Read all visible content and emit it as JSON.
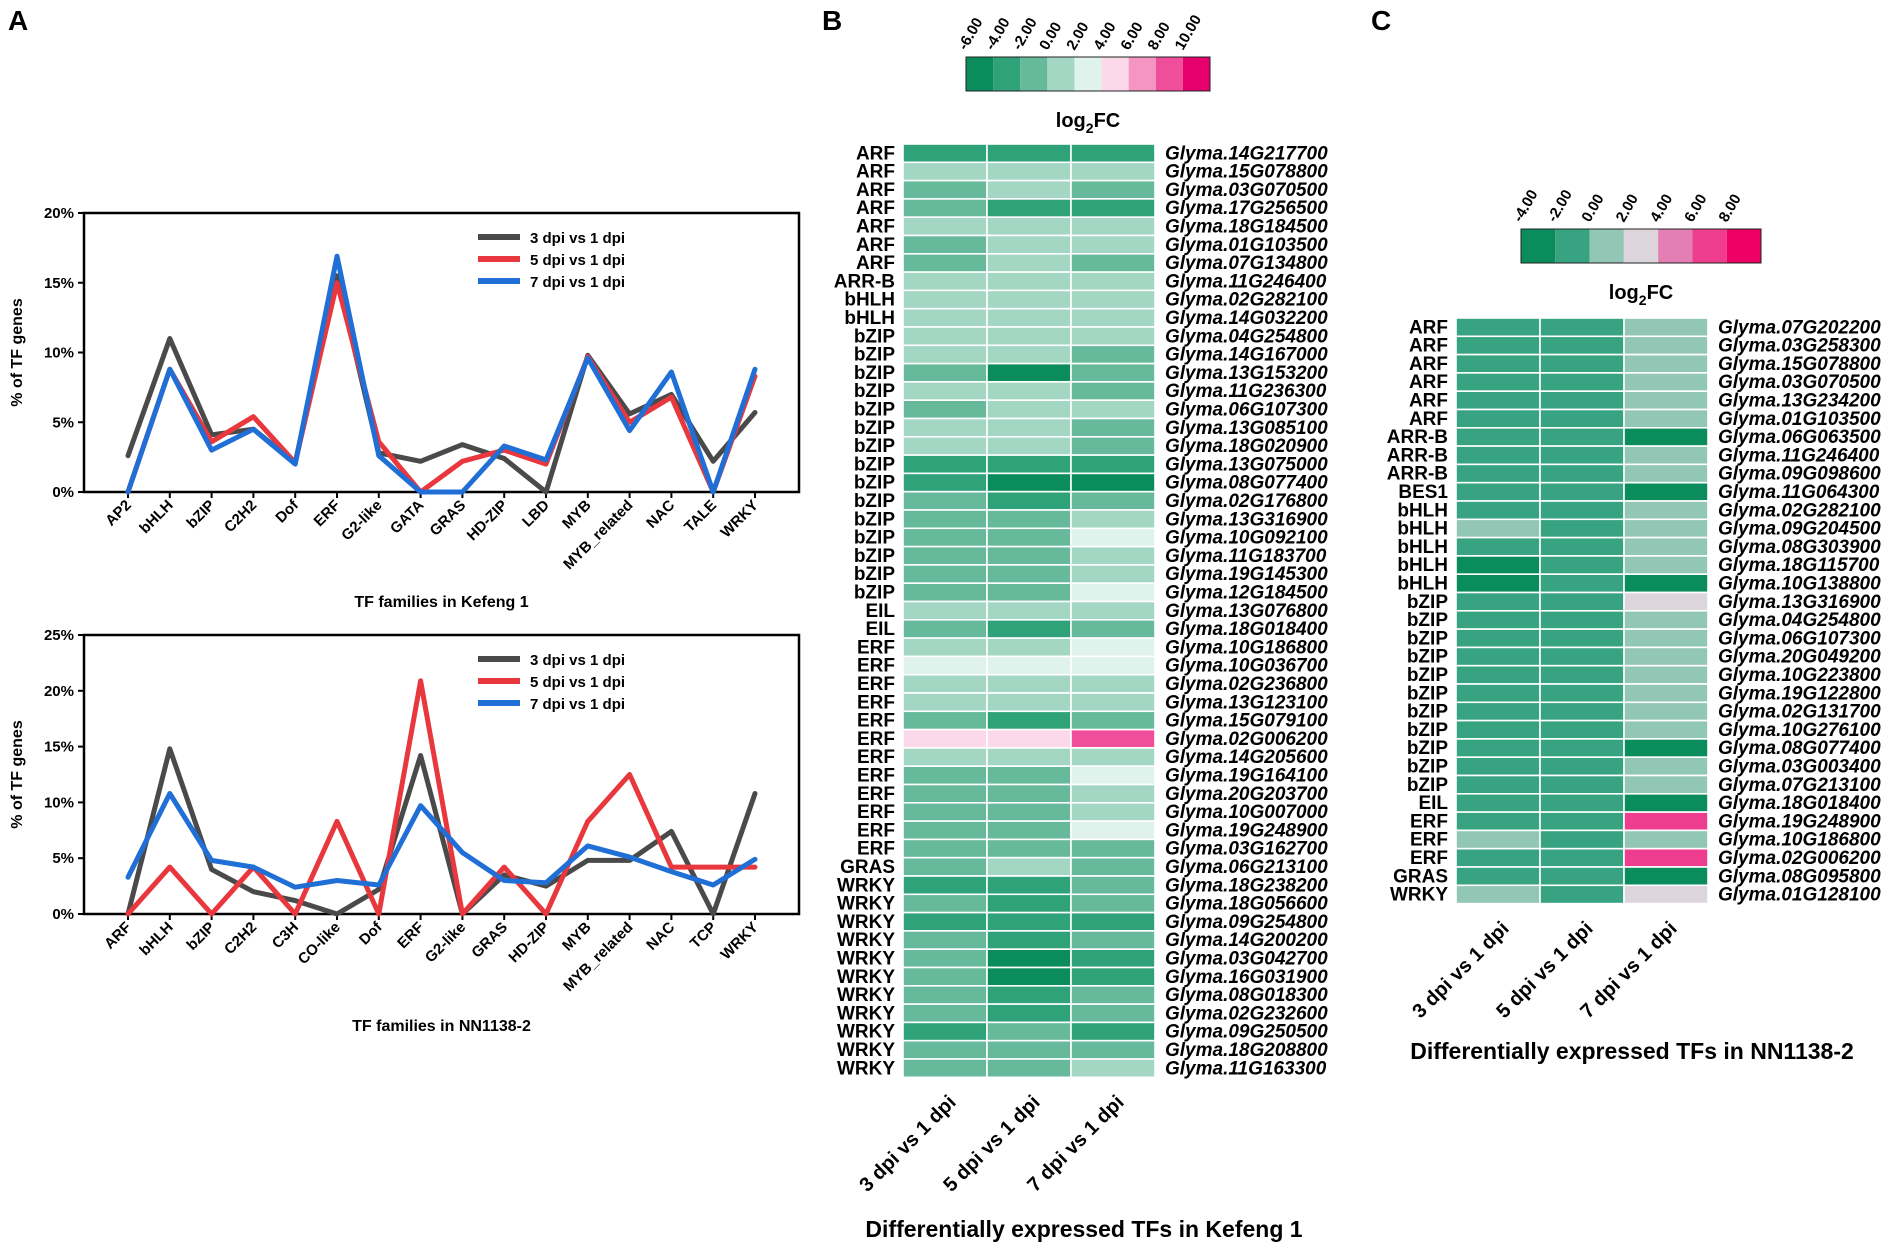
{
  "panels": {
    "A": "A",
    "B": "B",
    "C": "C"
  },
  "colors": {
    "series": [
      "#4a4a4a",
      "#e8383d",
      "#1f6fd6"
    ],
    "scale_B": [
      "#0a8c5c",
      "#2fa27a",
      "#66b99b",
      "#a3d7c4",
      "#e0f2ec",
      "#fbd9ea",
      "#f595c2",
      "#ef4f9a",
      "#e6006e"
    ],
    "scale_C": [
      "#0a8c5c",
      "#37a380",
      "#93c7b5",
      "#dcd6dc",
      "#e37fb3",
      "#ee3d8f",
      "#ee0065"
    ]
  },
  "chart_data": [
    {
      "type": "line",
      "panel": "A",
      "title": "",
      "xlabel": "TF families in Kefeng 1",
      "ylabel": "% of TF genes",
      "ylim": [
        0,
        20
      ],
      "yticks": [
        "0%",
        "5%",
        "10%",
        "15%",
        "20%"
      ],
      "legend_position": "top-right",
      "categories": [
        "AP2",
        "bHLH",
        "bZIP",
        "C2H2",
        "Dof",
        "ERF",
        "G2-like",
        "GATA",
        "GRAS",
        "HD-ZIP",
        "LBD",
        "MYB",
        "MYB_related",
        "NAC",
        "TALE",
        "WRKY"
      ],
      "series": [
        {
          "name": "3 dpi vs 1 dpi",
          "values": [
            2.6,
            11.0,
            4.1,
            4.5,
            2.1,
            15.5,
            2.8,
            2.2,
            3.4,
            2.4,
            0.0,
            9.8,
            5.6,
            7.0,
            2.2,
            5.7
          ]
        },
        {
          "name": "5 dpi vs 1 dpi",
          "values": [
            0.0,
            8.8,
            3.6,
            5.4,
            2.1,
            15.0,
            3.6,
            0.0,
            2.2,
            3.0,
            2.0,
            9.7,
            5.0,
            6.8,
            0.0,
            8.3
          ]
        },
        {
          "name": "7 dpi vs 1 dpi",
          "values": [
            0.0,
            8.8,
            3.0,
            4.5,
            2.0,
            16.9,
            2.6,
            0.0,
            0.0,
            3.3,
            2.3,
            9.6,
            4.4,
            8.6,
            0.0,
            8.8
          ]
        }
      ]
    },
    {
      "type": "line",
      "panel": "A",
      "title": "",
      "xlabel": "TF families in NN1138-2",
      "ylabel": "% of TF genes",
      "ylim": [
        0,
        25
      ],
      "yticks": [
        "0%",
        "5%",
        "10%",
        "15%",
        "20%",
        "25%"
      ],
      "legend_position": "top-right",
      "categories": [
        "ARF",
        "bHLH",
        "bZIP",
        "C2H2",
        "C3H",
        "CO-like",
        "Dof",
        "ERF",
        "G2-like",
        "GRAS",
        "HD-ZIP",
        "MYB",
        "MYB_related",
        "NAC",
        "TCP",
        "WRKY"
      ],
      "series": [
        {
          "name": "3 dpi vs 1 dpi",
          "values": [
            0.0,
            14.8,
            4.0,
            2.0,
            1.2,
            0.0,
            2.2,
            14.2,
            0.0,
            3.5,
            2.5,
            4.8,
            4.8,
            7.4,
            0.0,
            10.8
          ]
        },
        {
          "name": "5 dpi vs 1 dpi",
          "values": [
            0.0,
            4.2,
            0.0,
            4.2,
            0.0,
            8.3,
            0.0,
            20.9,
            0.0,
            4.2,
            0.0,
            8.3,
            12.5,
            4.2,
            4.2,
            4.2
          ]
        },
        {
          "name": "7 dpi vs 1 dpi",
          "values": [
            3.3,
            10.8,
            4.8,
            4.2,
            2.4,
            3.0,
            2.6,
            9.7,
            5.5,
            3.0,
            2.8,
            6.1,
            5.1,
            3.8,
            2.6,
            4.9
          ]
        }
      ]
    },
    {
      "type": "heatmap",
      "panel": "B",
      "title": "Differentially expressed TFs in Kefeng 1",
      "scale_title": "log2FC",
      "scale_ticks": [
        "-6.00",
        "-4.00",
        "-2.00",
        "0.00",
        "2.00",
        "4.00",
        "6.00",
        "8.00",
        "10.00"
      ],
      "columns": [
        "3 dpi vs 1 dpi",
        "5 dpi vs 1 dpi",
        "7 dpi vs 1 dpi"
      ],
      "rows": [
        {
          "family": "ARF",
          "gene": "Glyma.14G217700",
          "values": [
            -3,
            -3,
            -3
          ]
        },
        {
          "family": "ARF",
          "gene": "Glyma.15G078800",
          "values": [
            0,
            0,
            0
          ]
        },
        {
          "family": "ARF",
          "gene": "Glyma.03G070500",
          "values": [
            -1,
            0,
            -1
          ]
        },
        {
          "family": "ARF",
          "gene": "Glyma.17G256500",
          "values": [
            -1,
            -3,
            -3
          ]
        },
        {
          "family": "ARF",
          "gene": "Glyma.18G184500",
          "values": [
            0,
            0,
            0
          ]
        },
        {
          "family": "ARF",
          "gene": "Glyma.01G103500",
          "values": [
            -1,
            0,
            0
          ]
        },
        {
          "family": "ARF",
          "gene": "Glyma.07G134800",
          "values": [
            -1,
            0,
            -1
          ]
        },
        {
          "family": "ARR-B",
          "gene": "Glyma.11G246400",
          "values": [
            0,
            0,
            0
          ]
        },
        {
          "family": "bHLH",
          "gene": "Glyma.02G282100",
          "values": [
            0,
            0,
            0
          ]
        },
        {
          "family": "bHLH",
          "gene": "Glyma.14G032200",
          "values": [
            0,
            0,
            0
          ]
        },
        {
          "family": "bZIP",
          "gene": "Glyma.04G254800",
          "values": [
            0,
            0,
            0
          ]
        },
        {
          "family": "bZIP",
          "gene": "Glyma.14G167000",
          "values": [
            0,
            0,
            -1
          ]
        },
        {
          "family": "bZIP",
          "gene": "Glyma.13G153200",
          "values": [
            -1,
            -5,
            -1
          ]
        },
        {
          "family": "bZIP",
          "gene": "Glyma.11G236300",
          "values": [
            0,
            0,
            -1
          ]
        },
        {
          "family": "bZIP",
          "gene": "Glyma.06G107300",
          "values": [
            -1,
            0,
            0
          ]
        },
        {
          "family": "bZIP",
          "gene": "Glyma.13G085100",
          "values": [
            0,
            0,
            -1
          ]
        },
        {
          "family": "bZIP",
          "gene": "Glyma.18G020900",
          "values": [
            0,
            0,
            -1
          ]
        },
        {
          "family": "bZIP",
          "gene": "Glyma.13G075000",
          "values": [
            -3,
            -3,
            -3
          ]
        },
        {
          "family": "bZIP",
          "gene": "Glyma.08G077400",
          "values": [
            -3,
            -5,
            -5
          ]
        },
        {
          "family": "bZIP",
          "gene": "Glyma.02G176800",
          "values": [
            -1,
            -3,
            -1
          ]
        },
        {
          "family": "bZIP",
          "gene": "Glyma.13G316900",
          "values": [
            -1,
            -1,
            0
          ]
        },
        {
          "family": "bZIP",
          "gene": "Glyma.10G092100",
          "values": [
            -1,
            -1,
            3
          ]
        },
        {
          "family": "bZIP",
          "gene": "Glyma.11G183700",
          "values": [
            -1,
            -1,
            0
          ]
        },
        {
          "family": "bZIP",
          "gene": "Glyma.19G145300",
          "values": [
            -1,
            -1,
            0
          ]
        },
        {
          "family": "bZIP",
          "gene": "Glyma.12G184500",
          "values": [
            -1,
            -1,
            3
          ]
        },
        {
          "family": "EIL",
          "gene": "Glyma.13G076800",
          "values": [
            0,
            0,
            0
          ]
        },
        {
          "family": "EIL",
          "gene": "Glyma.18G018400",
          "values": [
            -1,
            -3,
            -1
          ]
        },
        {
          "family": "ERF",
          "gene": "Glyma.10G186800",
          "values": [
            0,
            0,
            3
          ]
        },
        {
          "family": "ERF",
          "gene": "Glyma.10G036700",
          "values": [
            3,
            3,
            3
          ]
        },
        {
          "family": "ERF",
          "gene": "Glyma.02G236800",
          "values": [
            0,
            0,
            0
          ]
        },
        {
          "family": "ERF",
          "gene": "Glyma.13G123100",
          "values": [
            0,
            0,
            0
          ]
        },
        {
          "family": "ERF",
          "gene": "Glyma.15G079100",
          "values": [
            -1,
            -3,
            -1
          ]
        },
        {
          "family": "ERF",
          "gene": "Glyma.02G006200",
          "values": [
            5,
            5,
            9
          ]
        },
        {
          "family": "ERF",
          "gene": "Glyma.14G205600",
          "values": [
            0,
            0,
            0
          ]
        },
        {
          "family": "ERF",
          "gene": "Glyma.19G164100",
          "values": [
            -1,
            -1,
            3
          ]
        },
        {
          "family": "ERF",
          "gene": "Glyma.20G203700",
          "values": [
            -1,
            -1,
            0
          ]
        },
        {
          "family": "ERF",
          "gene": "Glyma.10G007000",
          "values": [
            -1,
            -1,
            0
          ]
        },
        {
          "family": "ERF",
          "gene": "Glyma.19G248900",
          "values": [
            -1,
            -1,
            3
          ]
        },
        {
          "family": "ERF",
          "gene": "Glyma.03G162700",
          "values": [
            -1,
            -1,
            -1
          ]
        },
        {
          "family": "GRAS",
          "gene": "Glyma.06G213100",
          "values": [
            -1,
            0,
            -1
          ]
        },
        {
          "family": "WRKY",
          "gene": "Glyma.18G238200",
          "values": [
            -3,
            -3,
            -1
          ]
        },
        {
          "family": "WRKY",
          "gene": "Glyma.18G056600",
          "values": [
            -1,
            -3,
            -1
          ]
        },
        {
          "family": "WRKY",
          "gene": "Glyma.09G254800",
          "values": [
            -3,
            -3,
            -3
          ]
        },
        {
          "family": "WRKY",
          "gene": "Glyma.14G200200",
          "values": [
            -1,
            -3,
            -1
          ]
        },
        {
          "family": "WRKY",
          "gene": "Glyma.03G042700",
          "values": [
            -1,
            -5,
            -3
          ]
        },
        {
          "family": "WRKY",
          "gene": "Glyma.16G031900",
          "values": [
            -1,
            -5,
            -3
          ]
        },
        {
          "family": "WRKY",
          "gene": "Glyma.08G018300",
          "values": [
            -1,
            -3,
            -1
          ]
        },
        {
          "family": "WRKY",
          "gene": "Glyma.02G232600",
          "values": [
            -1,
            -3,
            -1
          ]
        },
        {
          "family": "WRKY",
          "gene": "Glyma.09G250500",
          "values": [
            -3,
            -1,
            -3
          ]
        },
        {
          "family": "WRKY",
          "gene": "Glyma.18G208800",
          "values": [
            -1,
            -1,
            -1
          ]
        },
        {
          "family": "WRKY",
          "gene": "Glyma.11G163300",
          "values": [
            -1,
            -1,
            0
          ]
        }
      ]
    },
    {
      "type": "heatmap",
      "panel": "C",
      "title": "Differentially expressed TFs in NN1138-2",
      "scale_title": "log2FC",
      "scale_ticks": [
        "-4.00",
        "-2.00",
        "0.00",
        "2.00",
        "4.00",
        "6.00",
        "8.00"
      ],
      "columns": [
        "3 dpi vs 1 dpi",
        "5 dpi vs 1 dpi",
        "7 dpi vs 1 dpi"
      ],
      "rows": [
        {
          "family": "ARF",
          "gene": "Glyma.07G202200",
          "values": [
            -1,
            -1,
            1
          ]
        },
        {
          "family": "ARF",
          "gene": "Glyma.03G258300",
          "values": [
            -1,
            -1,
            1
          ]
        },
        {
          "family": "ARF",
          "gene": "Glyma.15G078800",
          "values": [
            -1,
            -1,
            1
          ]
        },
        {
          "family": "ARF",
          "gene": "Glyma.03G070500",
          "values": [
            -1,
            -1,
            1
          ]
        },
        {
          "family": "ARF",
          "gene": "Glyma.13G234200",
          "values": [
            -1,
            -1,
            1
          ]
        },
        {
          "family": "ARF",
          "gene": "Glyma.01G103500",
          "values": [
            -1,
            -1,
            1
          ]
        },
        {
          "family": "ARR-B",
          "gene": "Glyma.06G063500",
          "values": [
            -1,
            -1,
            -3
          ]
        },
        {
          "family": "ARR-B",
          "gene": "Glyma.11G246400",
          "values": [
            -1,
            -1,
            1
          ]
        },
        {
          "family": "ARR-B",
          "gene": "Glyma.09G098600",
          "values": [
            -1,
            -1,
            1
          ]
        },
        {
          "family": "BES1",
          "gene": "Glyma.11G064300",
          "values": [
            -1,
            -1,
            -3
          ]
        },
        {
          "family": "bHLH",
          "gene": "Glyma.02G282100",
          "values": [
            -1,
            -1,
            1
          ]
        },
        {
          "family": "bHLH",
          "gene": "Glyma.09G204500",
          "values": [
            1,
            -1,
            1
          ]
        },
        {
          "family": "bHLH",
          "gene": "Glyma.08G303900",
          "values": [
            -1,
            -1,
            1
          ]
        },
        {
          "family": "bHLH",
          "gene": "Glyma.18G115700",
          "values": [
            -4,
            -1,
            1
          ]
        },
        {
          "family": "bHLH",
          "gene": "Glyma.10G138800",
          "values": [
            -4,
            -1,
            -3
          ]
        },
        {
          "family": "bZIP",
          "gene": "Glyma.13G316900",
          "values": [
            -1,
            -1,
            3
          ]
        },
        {
          "family": "bZIP",
          "gene": "Glyma.04G254800",
          "values": [
            -1,
            -1,
            1
          ]
        },
        {
          "family": "bZIP",
          "gene": "Glyma.06G107300",
          "values": [
            -1,
            -1,
            1
          ]
        },
        {
          "family": "bZIP",
          "gene": "Glyma.20G049200",
          "values": [
            -1,
            -1,
            1
          ]
        },
        {
          "family": "bZIP",
          "gene": "Glyma.10G223800",
          "values": [
            -1,
            -1,
            1
          ]
        },
        {
          "family": "bZIP",
          "gene": "Glyma.19G122800",
          "values": [
            -1,
            -1,
            1
          ]
        },
        {
          "family": "bZIP",
          "gene": "Glyma.02G131700",
          "values": [
            -1,
            -1,
            1
          ]
        },
        {
          "family": "bZIP",
          "gene": "Glyma.10G276100",
          "values": [
            -1,
            -1,
            1
          ]
        },
        {
          "family": "bZIP",
          "gene": "Glyma.08G077400",
          "values": [
            -1,
            -1,
            -3
          ]
        },
        {
          "family": "bZIP",
          "gene": "Glyma.03G003400",
          "values": [
            -1,
            -1,
            1
          ]
        },
        {
          "family": "bZIP",
          "gene": "Glyma.07G213100",
          "values": [
            -1,
            -1,
            1
          ]
        },
        {
          "family": "EIL",
          "gene": "Glyma.18G018400",
          "values": [
            -1,
            -1,
            -3
          ]
        },
        {
          "family": "ERF",
          "gene": "Glyma.19G248900",
          "values": [
            -1,
            -1,
            7
          ]
        },
        {
          "family": "ERF",
          "gene": "Glyma.10G186800",
          "values": [
            1,
            -1,
            1
          ]
        },
        {
          "family": "ERF",
          "gene": "Glyma.02G006200",
          "values": [
            -1,
            -1,
            7
          ]
        },
        {
          "family": "GRAS",
          "gene": "Glyma.08G095800",
          "values": [
            -1,
            -1,
            -3
          ]
        },
        {
          "family": "WRKY",
          "gene": "Glyma.01G128100",
          "values": [
            1,
            -1,
            3
          ]
        }
      ]
    }
  ]
}
